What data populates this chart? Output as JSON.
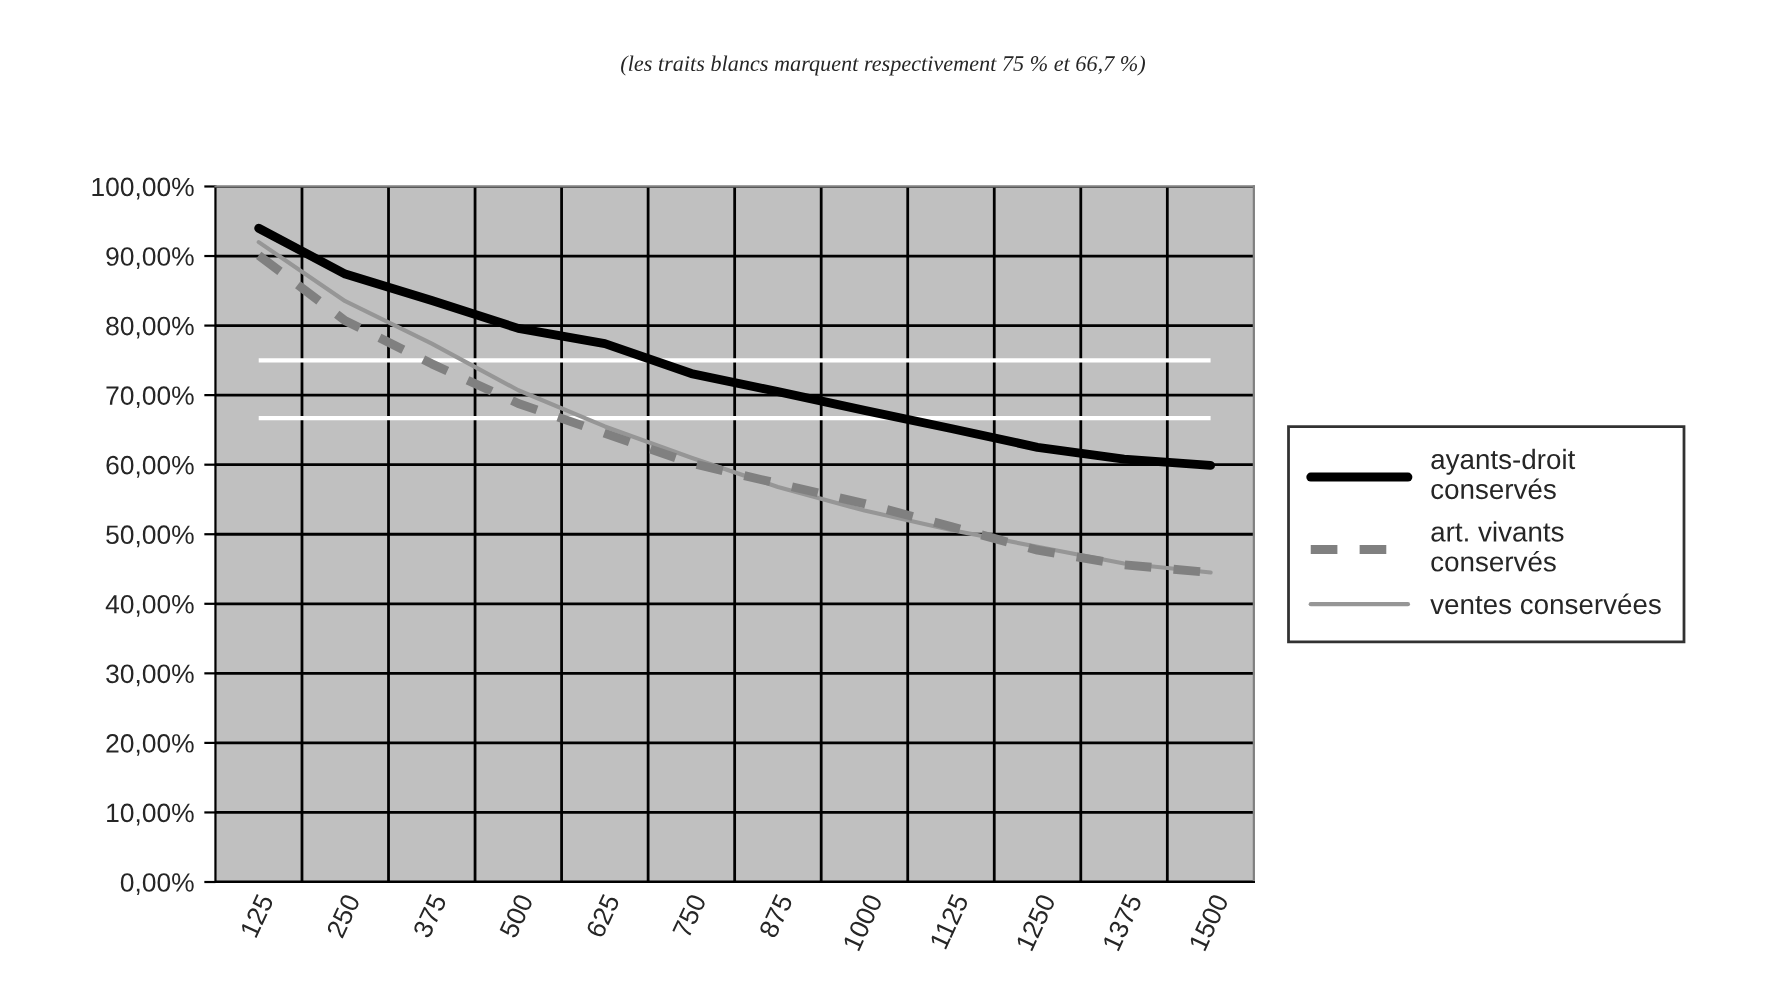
{
  "chart_data": {
    "type": "line",
    "subtitle": "(les traits blancs marquent respectivement 75 % et 66,7 %)",
    "categories": [
      "125",
      "250",
      "375",
      "500",
      "625",
      "750",
      "875",
      "1000",
      "1125",
      "1250",
      "1375",
      "1500"
    ],
    "series": [
      {
        "name": "ayants-droit conservés",
        "color": "#000000",
        "line_style": "solid",
        "values": [
          94.0,
          87.4,
          83.6,
          79.6,
          77.4,
          73.1,
          70.5,
          67.8,
          65.2,
          62.5,
          60.8,
          59.9
        ]
      },
      {
        "name": "art. vivants conservés",
        "color": "#808080",
        "line_style": "dashed",
        "values": [
          90.1,
          80.7,
          74.5,
          68.8,
          64.5,
          60.2,
          57.3,
          54.4,
          51.1,
          47.7,
          45.6,
          44.5
        ]
      },
      {
        "name": "ventes conservées",
        "color": "#969696",
        "line_style": "solid",
        "values": [
          92.0,
          83.5,
          77.4,
          70.7,
          65.5,
          61.0,
          56.8,
          53.4,
          50.6,
          48.2,
          45.8,
          44.5
        ]
      }
    ],
    "ylim": [
      0,
      100
    ],
    "yticks": [
      {
        "value": 0,
        "label": "0,00%"
      },
      {
        "value": 10,
        "label": "10,00%"
      },
      {
        "value": 20,
        "label": "20,00%"
      },
      {
        "value": 30,
        "label": "30,00%"
      },
      {
        "value": 40,
        "label": "40,00%"
      },
      {
        "value": 50,
        "label": "50,00%"
      },
      {
        "value": 60,
        "label": "60,00%"
      },
      {
        "value": 70,
        "label": "70,00%"
      },
      {
        "value": 80,
        "label": "80,00%"
      },
      {
        "value": 90,
        "label": "90,00%"
      },
      {
        "value": 100,
        "label": "100,00%"
      }
    ],
    "ref_lines": [
      {
        "axis": "y",
        "value": 75,
        "color": "#ffffff"
      },
      {
        "axis": "y",
        "value": 66.7,
        "color": "#ffffff"
      }
    ],
    "grid": true,
    "legend": "right",
    "marker": "none"
  }
}
